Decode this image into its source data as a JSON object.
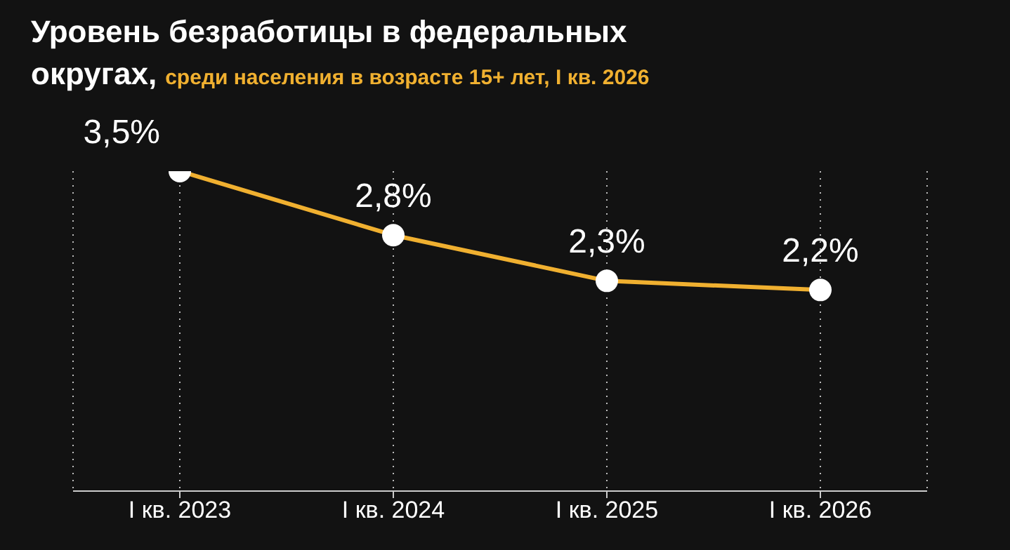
{
  "chart_data": {
    "type": "line",
    "title": "Уровень безработицы в федеральных округах,",
    "subtitle": "среди населения в возрасте 15+ лет, I кв. 2026",
    "categories": [
      "I кв. 2023",
      "I кв. 2024",
      "I кв. 2025",
      "I кв. 2026"
    ],
    "series": [
      {
        "color": "#f0b030",
        "values": [
          3.5,
          2.8,
          2.3,
          2.2
        ],
        "value_labels": [
          "3,5%",
          "2,8%",
          "2,3%",
          "2,2%"
        ]
      }
    ],
    "marker": "circle",
    "line_style": "solid",
    "grid": "x",
    "legend": false
  }
}
